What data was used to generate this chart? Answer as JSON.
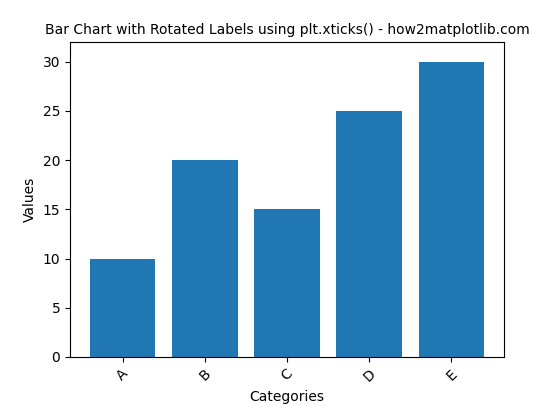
{
  "categories": [
    "A",
    "B",
    "C",
    "D",
    "E"
  ],
  "values": [
    10,
    20,
    15,
    25,
    30
  ],
  "bar_color": "#2077b4",
  "title": "Bar Chart with Rotated Labels using plt.xticks() - how2matplotlib.com",
  "xlabel": "Categories",
  "ylabel": "Values",
  "ylim": [
    0,
    32
  ],
  "xtick_rotation": 45,
  "title_fontsize": 10,
  "label_fontsize": 10
}
